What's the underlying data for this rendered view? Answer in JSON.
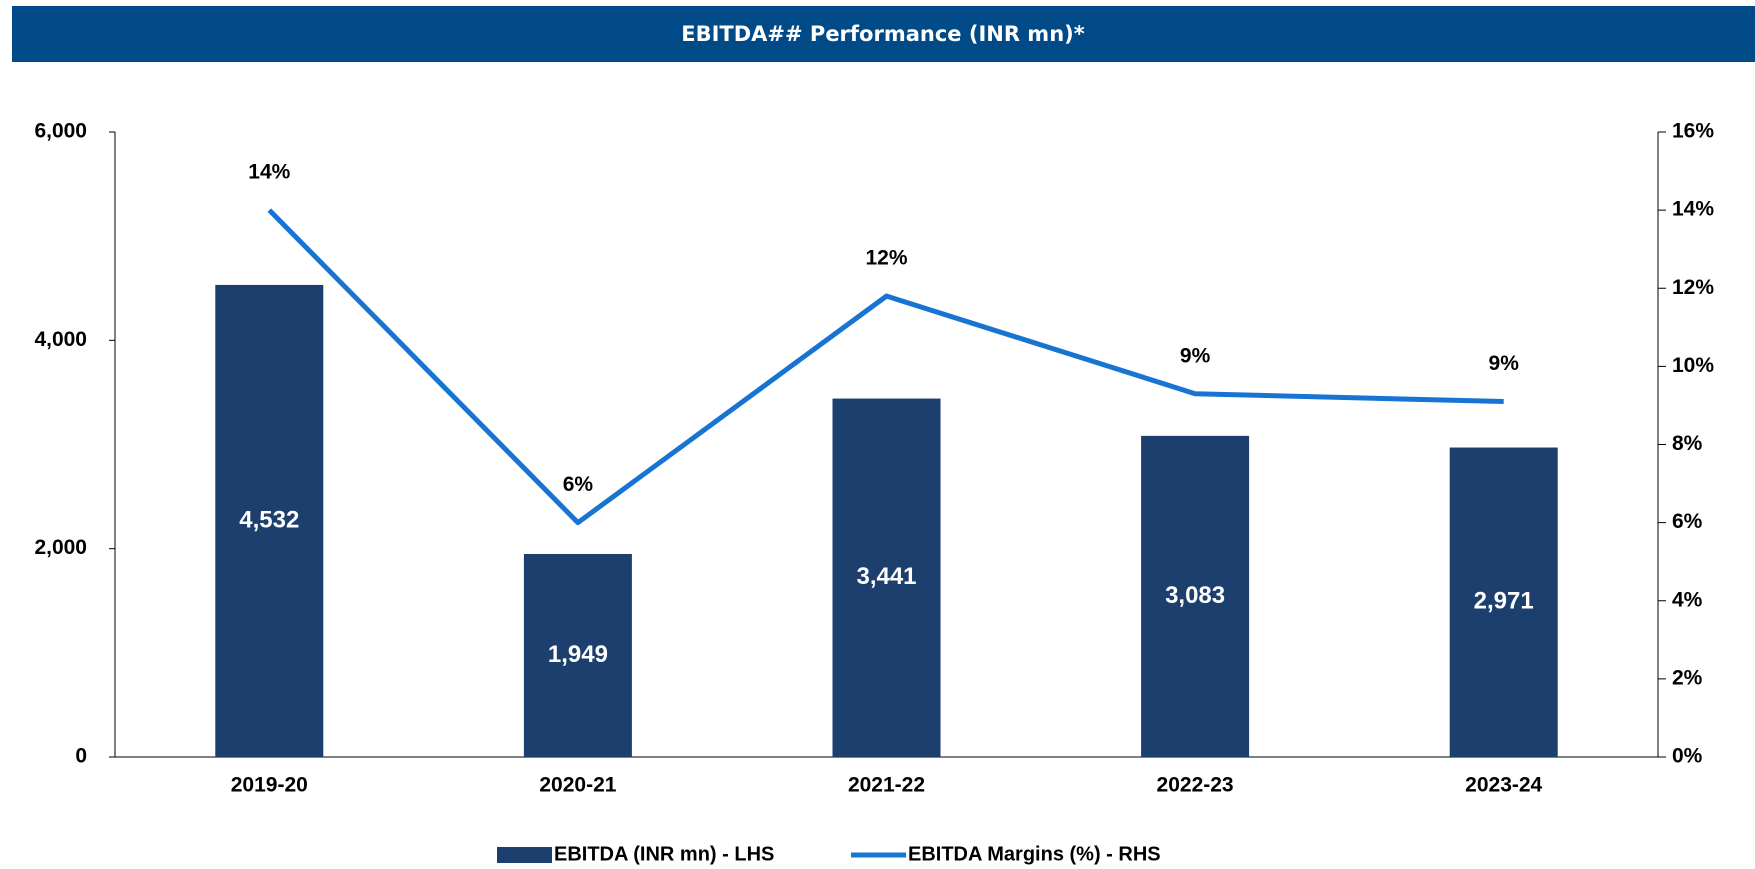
{
  "chart_data": {
    "type": "bar_line",
    "title": "EBITDA## Performance (INR mn)*",
    "categories": [
      "2019-20",
      "2020-21",
      "2021-22",
      "2022-23",
      "2023-24"
    ],
    "series": [
      {
        "name": "EBITDA (INR mn) - LHS",
        "color": "#1c3f6e",
        "type": "bar",
        "values": [
          4532,
          1949,
          3441,
          3083,
          2971
        ],
        "value_labels": [
          "4,532",
          "1,949",
          "3,441",
          "3,083",
          "2,971"
        ]
      },
      {
        "name": "EBITDA Margins (%) - RHS",
        "color": "#1874d2",
        "type": "line",
        "axis": "y2",
        "values": [
          14,
          6,
          11.8,
          9.3,
          9.1
        ],
        "value_labels": [
          "14%",
          "6%",
          "12%",
          "9%",
          "9%"
        ]
      }
    ],
    "ylim": [
      0,
      6000
    ],
    "yticks": [
      0,
      {
        "value": 2000,
        "label": "2,000"
      },
      {
        "value": 4000,
        "label": "4,000"
      },
      {
        "value": 6000,
        "label": "6,000"
      }
    ],
    "y2lim": [
      0,
      16
    ],
    "y2ticks": [
      {
        "value": 0,
        "label": "0%"
      },
      {
        "value": 2,
        "label": "2%"
      },
      {
        "value": 4,
        "label": "4%"
      },
      {
        "value": 6,
        "label": "6%"
      },
      {
        "value": 8,
        "label": "8%"
      },
      {
        "value": 10,
        "label": "10%"
      },
      {
        "value": 12,
        "label": "12%"
      },
      {
        "value": 14,
        "label": "14%"
      },
      {
        "value": 16,
        "label": "16%"
      }
    ],
    "legend": "bottom"
  }
}
